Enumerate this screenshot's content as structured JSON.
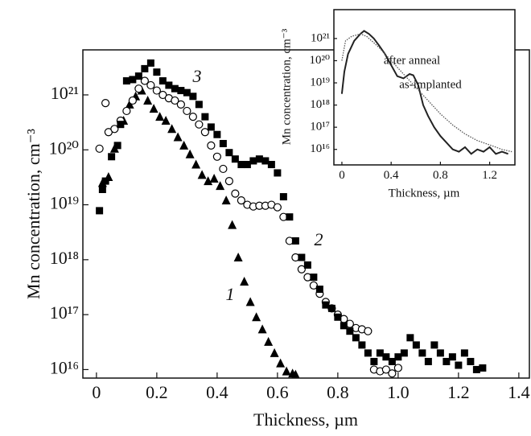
{
  "chart_data": [
    {
      "type": "scatter",
      "xlabel": "Thickness, µm",
      "ylabel": "Mn concentration, cm⁻³",
      "ylog": true,
      "xlim": [
        -0.045,
        1.435
      ],
      "ylim": [
        7000000000000000.0,
        6.6e+21
      ],
      "xticks": [
        0,
        0.2,
        0.4,
        0.6,
        0.8,
        {
          "value": 1,
          "label": "1.0"
        },
        1.2,
        1.4
      ],
      "yticks": [
        {
          "value": 1e+16,
          "label": "10¹⁶"
        },
        {
          "value": 1e+17,
          "label": "10¹⁷"
        },
        {
          "value": 1e+18,
          "label": "10¹⁸"
        },
        {
          "value": 1e+19,
          "label": "10¹⁹"
        },
        {
          "value": 1e+20,
          "label": "10²⁰"
        },
        {
          "value": 1e+21,
          "label": "10²¹"
        }
      ],
      "series": [
        {
          "name": "1",
          "marker": "triangle",
          "color": "#000000",
          "x": [
            0.02,
            0.04,
            0.06,
            0.09,
            0.11,
            0.13,
            0.15,
            0.17,
            0.19,
            0.21,
            0.23,
            0.25,
            0.27,
            0.29,
            0.31,
            0.33,
            0.35,
            0.37,
            0.39,
            0.41,
            0.43,
            0.45,
            0.47,
            0.49,
            0.51,
            0.53,
            0.55,
            0.57,
            0.59,
            0.61,
            0.63,
            0.65,
            0.66
          ],
          "values": [
            2.5e+19,
            3.2e+19,
            1.05e+20,
            3.4e+20,
            6.7e+20,
            9.4e+20,
            1.2e+21,
            7.9e+20,
            5.6e+20,
            4e+20,
            3.4e+20,
            2.4e+20,
            1.7e+20,
            1.2e+20,
            8.3e+19,
            5.4e+19,
            3.5e+19,
            2.7e+19,
            3e+19,
            2.2e+19,
            1.2e+19,
            4.3e+18,
            1.1e+18,
            4e+17,
            1.7e+17,
            9e+16,
            5.4e+16,
            3.2e+16,
            2e+16,
            1.3e+16,
            9300000000000000.0,
            8500000000000000.0,
            8100000000000000.0
          ]
        },
        {
          "name": "2",
          "marker": "circle",
          "color": "#000000",
          "x": [
            0.01,
            0.03,
            0.04,
            0.06,
            0.08,
            0.1,
            0.12,
            0.14,
            0.16,
            0.18,
            0.2,
            0.22,
            0.24,
            0.26,
            0.28,
            0.3,
            0.32,
            0.34,
            0.36,
            0.38,
            0.4,
            0.42,
            0.44,
            0.46,
            0.48,
            0.5,
            0.52,
            0.54,
            0.56,
            0.58,
            0.6,
            0.62,
            0.64,
            0.66,
            0.68,
            0.7,
            0.72,
            0.74,
            0.76,
            0.78,
            0.8,
            0.82,
            0.84,
            0.86,
            0.88,
            0.9,
            0.92,
            0.94,
            0.96,
            0.98,
            1.0
          ],
          "values": [
            1.05e+20,
            7.1e+20,
            2.1e+20,
            2.4e+20,
            3.4e+20,
            5.1e+20,
            7.9e+20,
            1.3e+21,
            1.8e+21,
            1.5e+21,
            1.2e+21,
            1e+21,
            8.7e+20,
            7.9e+20,
            6.7e+20,
            5.1e+20,
            4e+20,
            2.9e+20,
            2.1e+20,
            1.2e+20,
            7.5e+19,
            4.5e+19,
            2.7e+19,
            1.6e+19,
            1.2e+19,
            1e+19,
            9.3e+18,
            9.6e+18,
            9.6e+18,
            1e+19,
            9e+18,
            6e+18,
            2.2e+18,
            1.1e+18,
            6.7e+17,
            4.8e+17,
            3.4e+17,
            2.4e+17,
            1.7e+17,
            1.3e+17,
            1e+17,
            8.3e+16,
            6.8e+16,
            5.7e+16,
            5.4e+16,
            5e+16,
            1e+16,
            9300000000000000.0,
            1e+16,
            8500000000000000.0,
            1.07e+16
          ]
        },
        {
          "name": "3",
          "marker": "square",
          "color": "#000000",
          "x": [
            0.01,
            0.02,
            0.03,
            0.05,
            0.07,
            0.08,
            0.1,
            0.12,
            0.14,
            0.16,
            0.18,
            0.2,
            0.22,
            0.24,
            0.26,
            0.28,
            0.3,
            0.32,
            0.34,
            0.36,
            0.38,
            0.4,
            0.42,
            0.44,
            0.46,
            0.48,
            0.5,
            0.52,
            0.54,
            0.56,
            0.58,
            0.6,
            0.62,
            0.64,
            0.66,
            0.68,
            0.7,
            0.72,
            0.74,
            0.76,
            0.78,
            0.8,
            0.82,
            0.84,
            0.86,
            0.88,
            0.9,
            0.92,
            0.94,
            0.96,
            0.98,
            1.0,
            1.02,
            1.04,
            1.06,
            1.08,
            1.1,
            1.12,
            1.14,
            1.16,
            1.18,
            1.2,
            1.22,
            1.24,
            1.26,
            1.28
          ],
          "values": [
            7.8e+18,
            1.9e+19,
            2.7e+19,
            7.5e+19,
            1.2e+20,
            2.9e+20,
            1.8e+21,
            1.9e+21,
            2.2e+21,
            3e+21,
            3.8e+21,
            2.6e+21,
            1.8e+21,
            1.5e+21,
            1.3e+21,
            1.2e+21,
            1.1e+21,
            9.4e+20,
            6.7e+20,
            4e+20,
            2.6e+20,
            1.9e+20,
            1.3e+20,
            8.9e+19,
            6.8e+19,
            5.4e+19,
            5.4e+19,
            6.3e+19,
            6.8e+19,
            6.3e+19,
            5.4e+19,
            3.8e+19,
            1.4e+19,
            6e+18,
            2.2e+18,
            1.1e+18,
            8e+17,
            4.8e+17,
            2.9e+17,
            1.5e+17,
            1.3e+17,
            9e+16,
            6.3e+16,
            5e+16,
            3.8e+16,
            2.8e+16,
            2e+16,
            1.4e+16,
            2e+16,
            1.7e+16,
            1.4e+16,
            1.7e+16,
            2e+16,
            3.8e+16,
            2.8e+16,
            2e+16,
            1.4e+16,
            2.8e+16,
            2e+16,
            1.4e+16,
            1.7e+16,
            1.2e+16,
            2e+16,
            1.4e+16,
            1e+16,
            1.07e+16
          ]
        }
      ]
    },
    {
      "type": "line",
      "xlabel": "Thickness, µm",
      "ylabel": "Mn concentration, cm⁻³",
      "ylog": true,
      "xlim": [
        -0.065,
        1.405
      ],
      "ylim": [
        2000000000000000.0,
        2e+22
      ],
      "xticks": [
        0,
        0.4,
        0.8,
        1.2
      ],
      "yticks": [
        {
          "value": 1e+16,
          "label": "10¹⁶"
        },
        {
          "value": 1e+17,
          "label": "10¹⁷"
        },
        {
          "value": 1e+18,
          "label": "10¹⁸"
        },
        {
          "value": 1e+19,
          "label": "10¹⁹"
        },
        {
          "value": 1e+20,
          "label": "10²⁰"
        },
        {
          "value": 1e+21,
          "label": "10²¹"
        }
      ],
      "series": [
        {
          "name": "after anneal",
          "linestyle": "solid",
          "color": "#222222",
          "x": [
            0,
            0.02,
            0.05,
            0.1,
            0.15,
            0.18,
            0.22,
            0.26,
            0.3,
            0.35,
            0.4,
            0.45,
            0.5,
            0.55,
            0.58,
            0.62,
            0.66,
            0.7,
            0.75,
            0.8,
            0.85,
            0.9,
            0.95,
            1.0,
            1.05,
            1.1,
            1.15,
            1.2,
            1.25,
            1.3,
            1.35
          ],
          "values": [
            3.2e+18,
            3.2e+19,
            2e+20,
            7.9e+20,
            1.6e+21,
            2.2e+21,
            1.6e+21,
            1e+21,
            5e+20,
            2e+20,
            6.3e+19,
            2e+19,
            1.6e+19,
            2.5e+19,
            2.2e+19,
            7.9e+18,
            1e+18,
            3.2e+17,
            1e+17,
            4e+16,
            2e+16,
            1e+16,
            7900000000000000.0,
            1.26e+16,
            6300000000000000.0,
            1e+16,
            7900000000000000.0,
            1.26e+16,
            6300000000000000.0,
            7900000000000000.0,
            6300000000000000.0
          ]
        },
        {
          "name": "as-implanted",
          "linestyle": "dotted",
          "color": "#555555",
          "x": [
            0,
            0.03,
            0.08,
            0.15,
            0.2,
            0.3,
            0.4,
            0.5,
            0.6,
            0.7,
            0.8,
            0.9,
            1.0,
            1.1,
            1.2,
            1.3,
            1.38
          ],
          "values": [
            1e+20,
            7.9e+20,
            1.26e+21,
            1.6e+21,
            1.26e+21,
            4e+20,
            1e+20,
            2.5e+19,
            6.3e+18,
            1.6e+18,
            4e+17,
            1.26e+17,
            5e+16,
            2.5e+16,
            1.6e+16,
            1e+16,
            7900000000000000.0
          ]
        }
      ]
    }
  ]
}
